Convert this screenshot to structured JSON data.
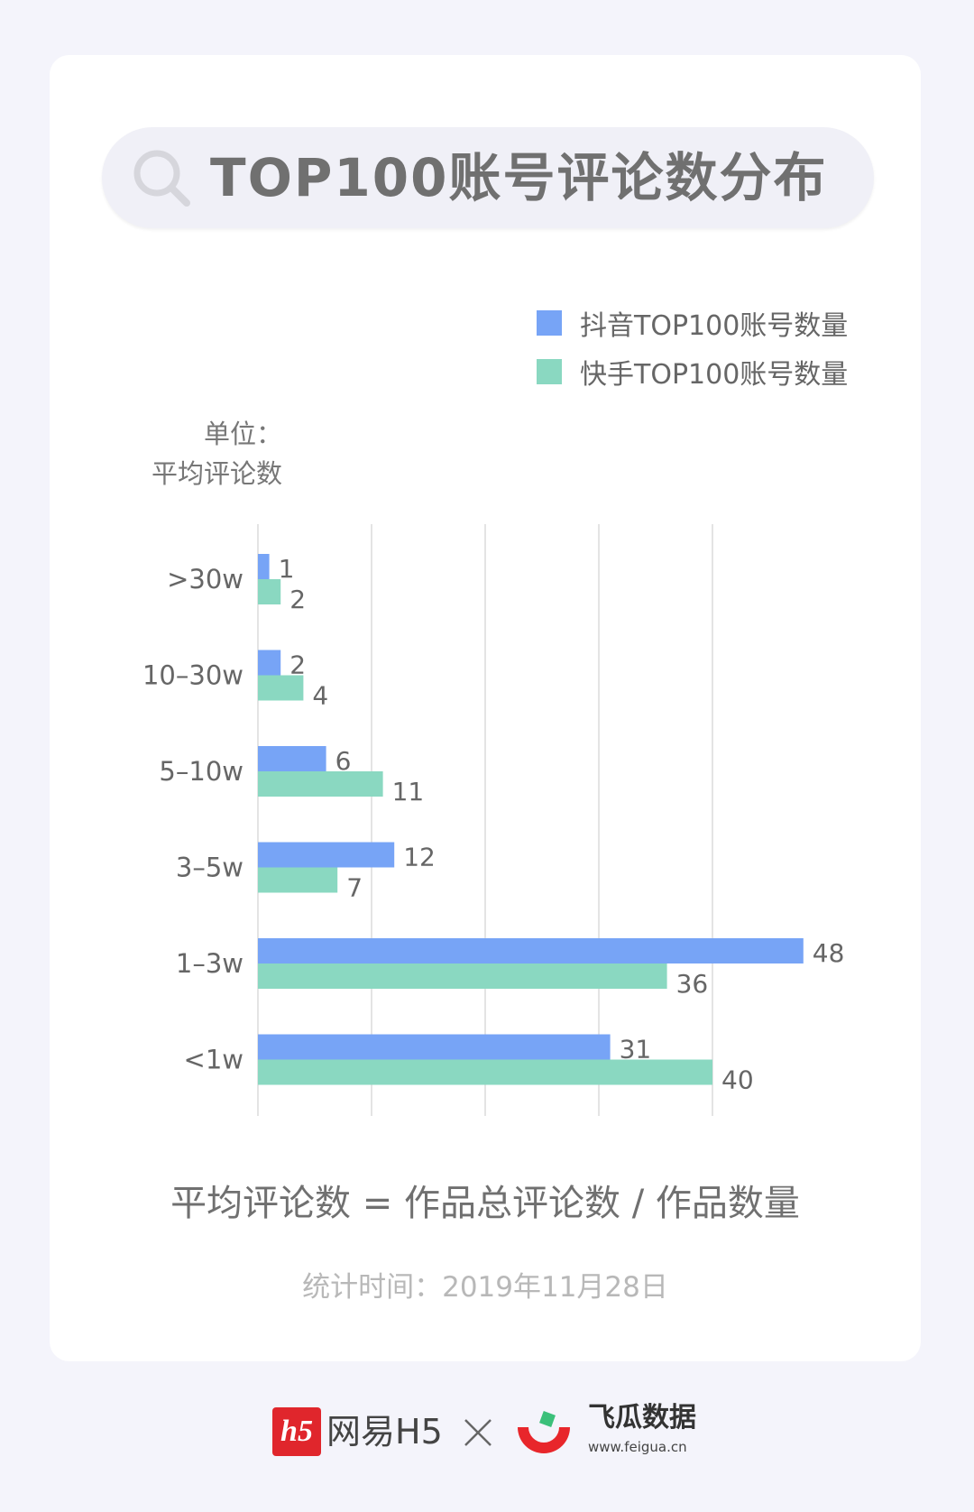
{
  "title": "TOP100账号评论数分布",
  "unit_label_line1": "单位：",
  "unit_label_line2": "平均评论数",
  "colors": {
    "douyin": "#77a4f6",
    "kuaishou": "#8ad8c1"
  },
  "chart_data": {
    "type": "bar",
    "orientation": "horizontal",
    "categories": [
      ">30w",
      "10–30w",
      "5–10w",
      "3–5w",
      "1–3w",
      "<1w"
    ],
    "series": [
      {
        "name": "抖音TOP100账号数量",
        "values": [
          1,
          2,
          6,
          12,
          48,
          31
        ]
      },
      {
        "name": "快手TOP100账号数量",
        "values": [
          2,
          4,
          11,
          7,
          36,
          40
        ]
      }
    ],
    "xlim": [
      0,
      50
    ],
    "grid": true,
    "legend_position": "top-right"
  },
  "formula": "平均评论数 = 作品总评论数 / 作品数量",
  "stat_time": "统计时间：2019年11月28日",
  "footer": {
    "netease_logo_text": "h5",
    "netease_name": "网易H5",
    "feigua_name": "飞瓜数据",
    "feigua_url": "www.feigua.cn"
  }
}
